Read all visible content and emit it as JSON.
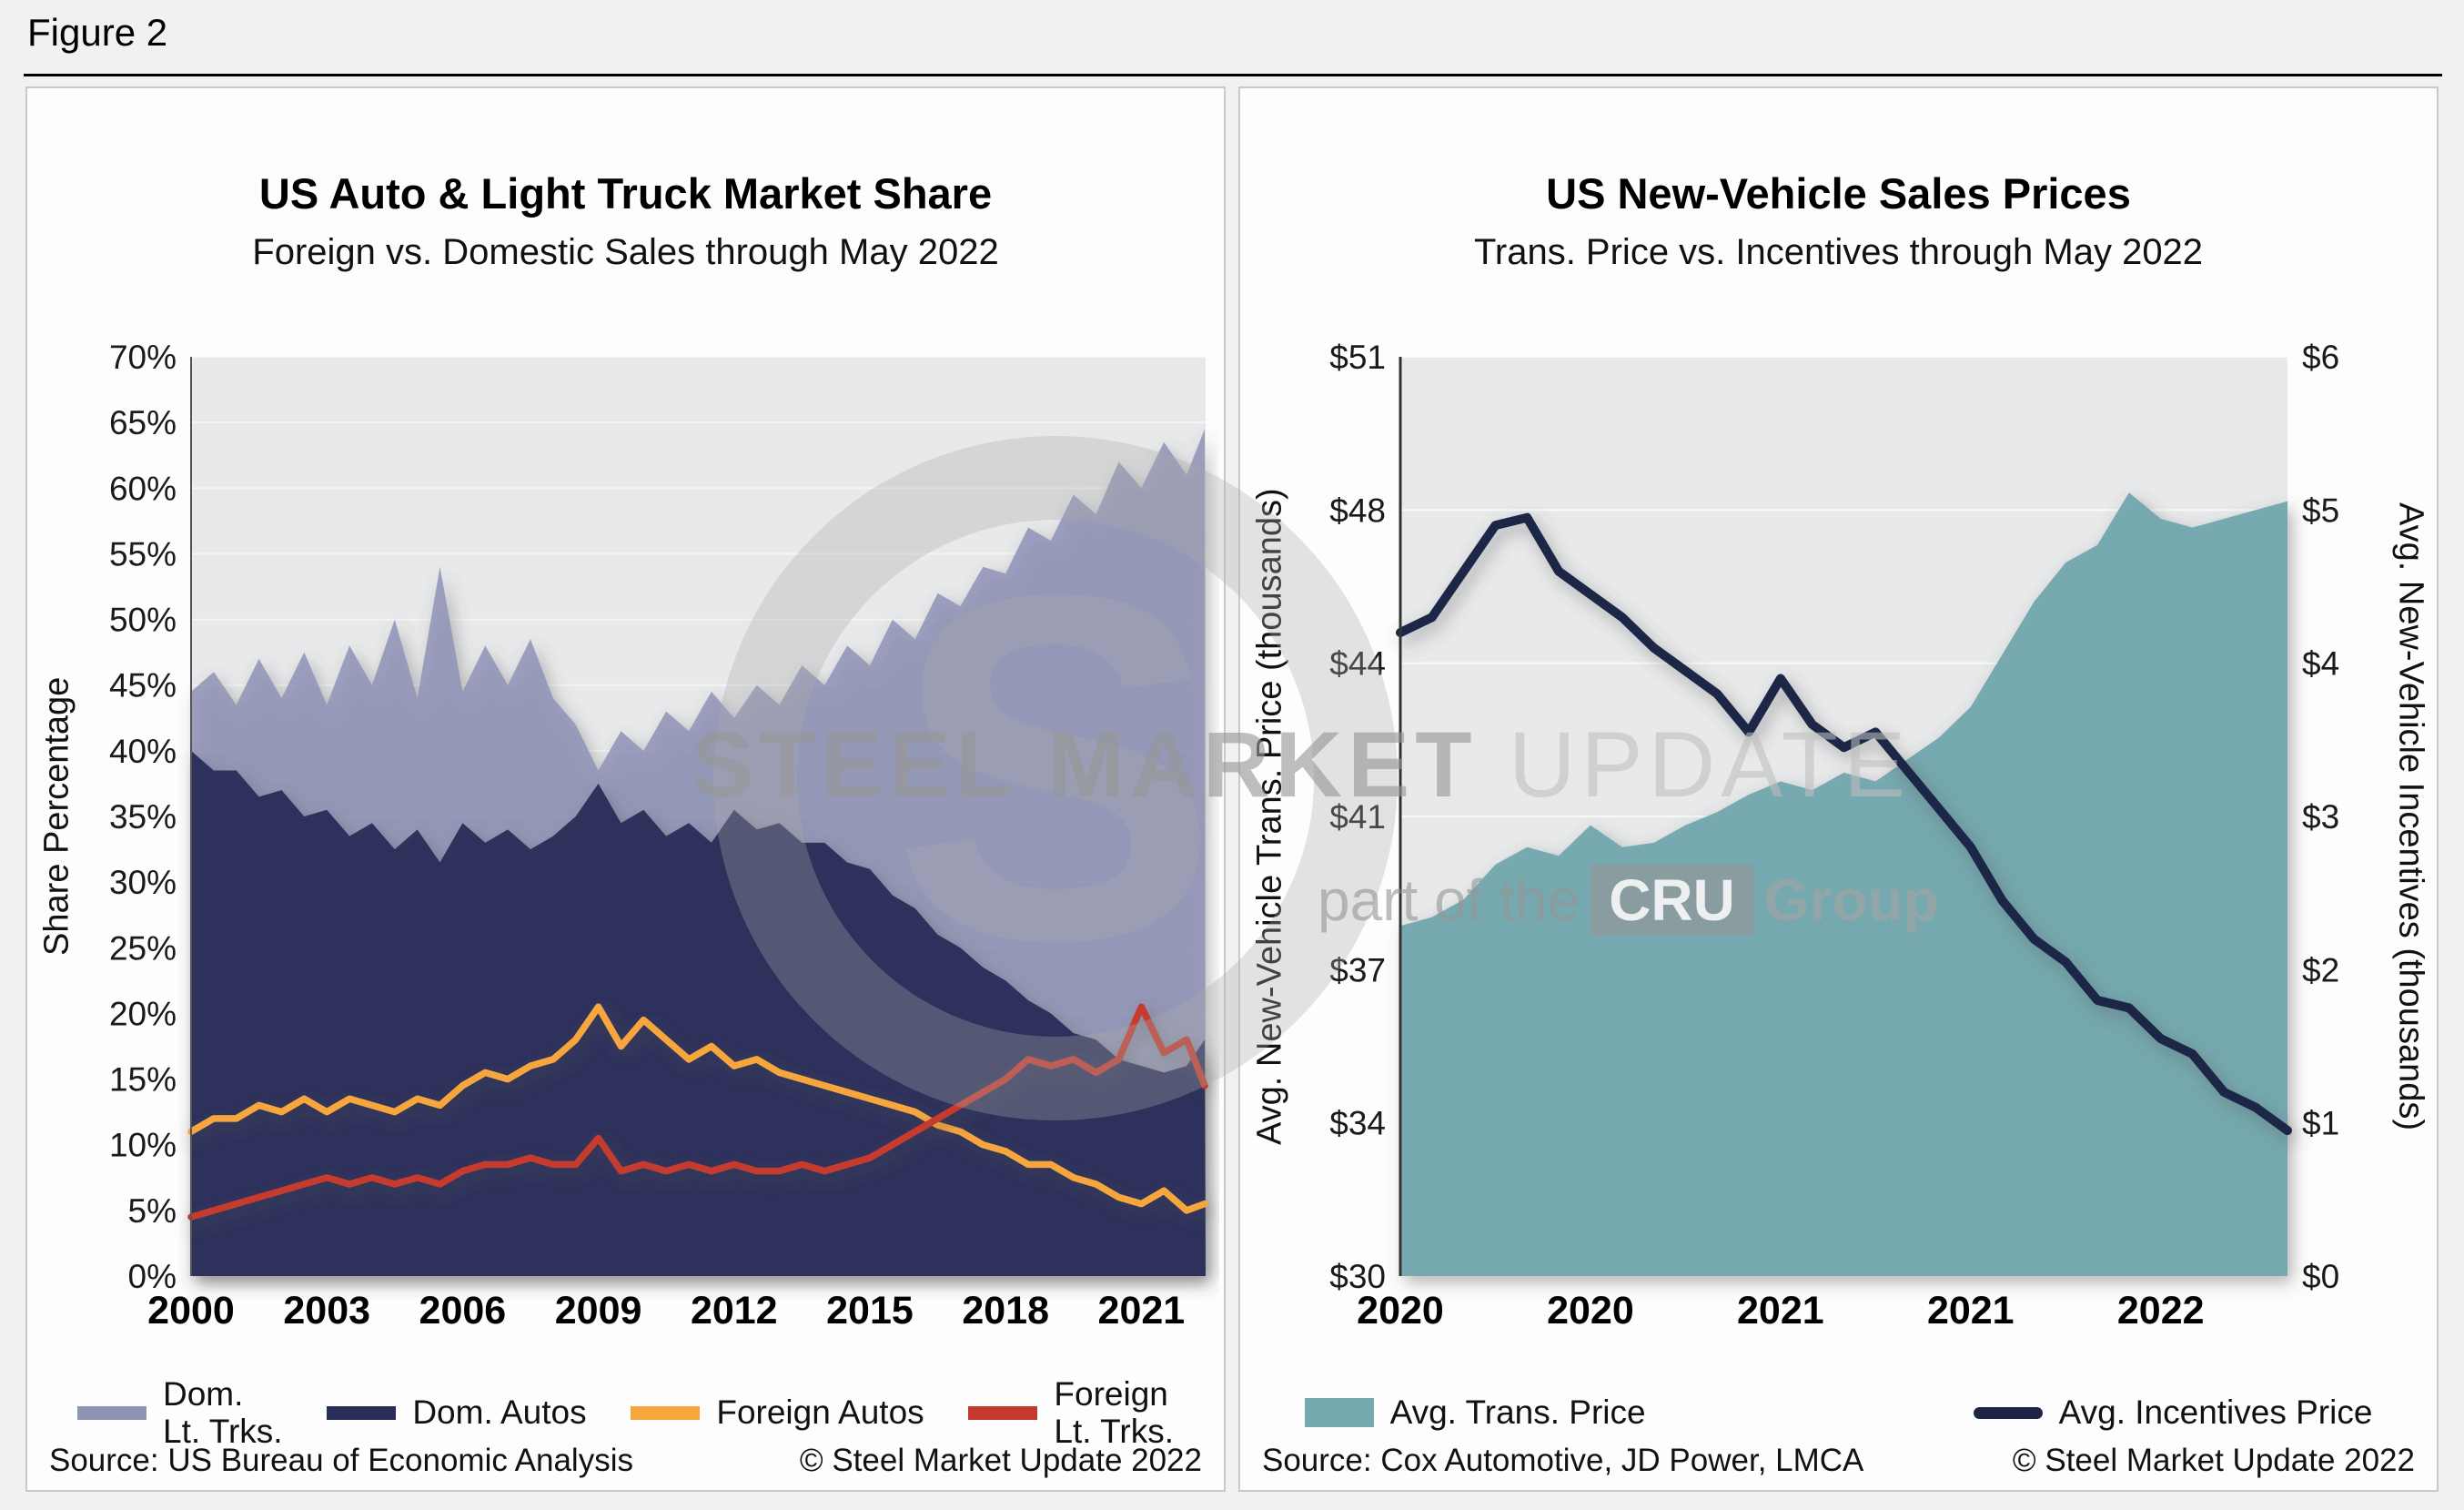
{
  "figure_label": "Figure 2",
  "watermark": {
    "logo_letter": "S",
    "brand_bold": "STEEL MARKET",
    "brand_light": " UPDATE",
    "tagline_prefix": "part of the",
    "tagline_box": "CRU",
    "tagline_suffix": "Group"
  },
  "chart_data": [
    {
      "type": "area",
      "title": "US Auto & Light Truck Market Share",
      "subtitle": "Foreign vs. Domestic Sales through May 2022",
      "ylabel": "Share Percentage",
      "x_range": [
        2000,
        2022.42
      ],
      "ylim": [
        0,
        70
      ],
      "ytick_step": 5,
      "ytick_labels": [
        "0%",
        "5%",
        "10%",
        "15%",
        "20%",
        "25%",
        "30%",
        "35%",
        "40%",
        "45%",
        "50%",
        "55%",
        "60%",
        "65%",
        "70%"
      ],
      "xtick_values": [
        2000,
        2003,
        2006,
        2009,
        2012,
        2015,
        2018,
        2021
      ],
      "xtick_labels": [
        "2000",
        "2003",
        "2006",
        "2009",
        "2012",
        "2015",
        "2018",
        "2021"
      ],
      "x": [
        2000,
        2000.5,
        2001,
        2001.5,
        2002,
        2002.5,
        2003,
        2003.5,
        2004,
        2004.5,
        2005,
        2005.5,
        2006,
        2006.5,
        2007,
        2007.5,
        2008,
        2008.5,
        2009,
        2009.5,
        2010,
        2010.5,
        2011,
        2011.5,
        2012,
        2012.5,
        2013,
        2013.5,
        2014,
        2014.5,
        2015,
        2015.5,
        2016,
        2016.5,
        2017,
        2017.5,
        2018,
        2018.5,
        2019,
        2019.5,
        2020,
        2020.5,
        2021,
        2021.5,
        2022,
        2022.4
      ],
      "series": [
        {
          "name": "Dom. Lt. Trks.",
          "legend_lines": [
            "Dom.",
            "Lt. Trks."
          ],
          "style": "area",
          "color": "#8f93b6",
          "fill_opacity": 0.85,
          "values": [
            44.5,
            46,
            43.5,
            47,
            44,
            47.5,
            43.5,
            48,
            45,
            50,
            44,
            54,
            44.5,
            48,
            45,
            48.5,
            44,
            42,
            38.5,
            41.5,
            40,
            43,
            41.5,
            44.5,
            42.5,
            45,
            43.5,
            46.5,
            45,
            48,
            46.5,
            50,
            48.5,
            52,
            51,
            54,
            53.5,
            57,
            56,
            59.5,
            58,
            62,
            60,
            63.5,
            61,
            64.5
          ]
        },
        {
          "name": "Dom. Autos",
          "legend_lines": [
            "Dom. Autos"
          ],
          "style": "area",
          "color": "#2a2e5a",
          "fill_opacity": 0.97,
          "values": [
            40,
            38.5,
            38.5,
            36.5,
            37,
            35,
            35.5,
            33.5,
            34.5,
            32.5,
            34,
            31.5,
            34.5,
            33,
            34,
            32.5,
            33.5,
            35,
            37.5,
            34.5,
            35.5,
            33.5,
            34.5,
            33,
            35.5,
            34,
            34.5,
            33,
            33,
            31.5,
            31,
            29,
            28,
            26,
            25,
            23.5,
            22.5,
            21,
            20,
            18.5,
            18,
            16.5,
            16,
            15.5,
            16,
            18
          ]
        },
        {
          "name": "Foreign Autos",
          "legend_lines": [
            "Foreign Autos"
          ],
          "style": "line",
          "color": "#f6a63c",
          "values": [
            11,
            12,
            12,
            13,
            12.5,
            13.5,
            12.5,
            13.5,
            13,
            12.5,
            13.5,
            13,
            14.5,
            15.5,
            15,
            16,
            16.5,
            18,
            20.5,
            17.5,
            19.5,
            18,
            16.5,
            17.5,
            16,
            16.5,
            15.5,
            15,
            14.5,
            14,
            13.5,
            13,
            12.5,
            11.5,
            11,
            10,
            9.5,
            8.5,
            8.5,
            7.5,
            7,
            6,
            5.5,
            6.5,
            5,
            5.5
          ]
        },
        {
          "name": "Foreign Lt. Trks.",
          "legend_lines": [
            "Foreign",
            "Lt. Trks."
          ],
          "style": "line",
          "color": "#c53a2e",
          "values": [
            4.5,
            5,
            5.5,
            6,
            6.5,
            7,
            7.5,
            7,
            7.5,
            7,
            7.5,
            7,
            8,
            8.5,
            8.5,
            9,
            8.5,
            8.5,
            10.5,
            8,
            8.5,
            8,
            8.5,
            8,
            8.5,
            8,
            8,
            8.5,
            8,
            8.5,
            9,
            10,
            11,
            12,
            13,
            14,
            15,
            16.5,
            16,
            16.5,
            15.5,
            16.5,
            20.5,
            17,
            18,
            14.5
          ]
        }
      ],
      "source": "Source: US Bureau of Economic Analysis",
      "copyright": "© Steel Market Update 2022"
    },
    {
      "type": "area-line-dual-axis",
      "title": "US New-Vehicle Sales Prices",
      "subtitle": "Trans. Price vs. Incentives through May 2022",
      "ylabel_left": "Avg. New-Vehicle Trans. Price (thousands)",
      "ylabel_right": "Avg. New-Vehicle Incentives (thousands)",
      "ylim_left": [
        30,
        51
      ],
      "yticks_left": [
        "$30",
        "$34",
        "$37",
        "$41",
        "$44",
        "$48",
        "$51"
      ],
      "ylim_right": [
        0,
        6
      ],
      "yticks_right": [
        "$0",
        "$1",
        "$2",
        "$3",
        "$4",
        "$5",
        "$6"
      ],
      "xtick_positions": [
        0,
        6,
        12,
        18,
        24
      ],
      "xtick_labels": [
        "2020",
        "2020",
        "2021",
        "2021",
        "2022"
      ],
      "x": [
        0,
        1,
        2,
        3,
        4,
        5,
        6,
        7,
        8,
        9,
        10,
        11,
        12,
        13,
        14,
        15,
        16,
        17,
        18,
        19,
        20,
        21,
        22,
        23,
        24,
        25,
        26,
        27,
        28
      ],
      "series": [
        {
          "name": "Avg. Trans. Price",
          "style": "area",
          "axis": "left",
          "color": "#74a7ae",
          "fill_opacity": 0.97,
          "values": [
            38,
            38.2,
            38.6,
            39.4,
            39.8,
            39.6,
            40.3,
            39.8,
            39.9,
            40.3,
            40.6,
            41,
            41.3,
            41.1,
            41.5,
            41.3,
            41.8,
            42.3,
            43,
            44.2,
            45.4,
            46.3,
            46.7,
            47.9,
            47.3,
            47.1,
            47.3,
            47.5,
            47.7
          ]
        },
        {
          "name": "Avg. Incentives Price",
          "style": "line",
          "axis": "right",
          "color": "#1c2547",
          "values": [
            4.2,
            4.3,
            4.6,
            4.9,
            4.95,
            4.6,
            4.45,
            4.3,
            4.1,
            3.95,
            3.8,
            3.55,
            3.9,
            3.6,
            3.45,
            3.55,
            3.3,
            3.05,
            2.8,
            2.45,
            2.2,
            2.05,
            1.8,
            1.75,
            1.55,
            1.45,
            1.2,
            1.1,
            0.95
          ]
        }
      ],
      "source": "Source: Cox Automotive, JD Power, LMCA",
      "copyright": "© Steel Market Update 2022"
    }
  ]
}
